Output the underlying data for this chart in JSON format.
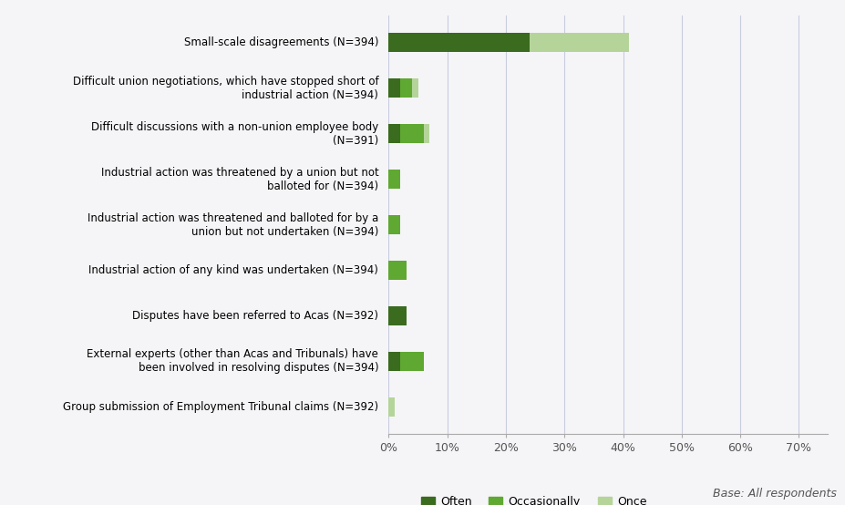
{
  "categories": [
    "Small-scale disagreements (N=394)",
    "Difficult union negotiations, which have stopped short of\nindustrial action (N=394)",
    "Difficult discussions with a non-union employee body\n(N=391)",
    "Industrial action was threatened by a union but not\nballoted for (N=394)",
    "Industrial action was threatened and balloted for by a\nunion but not undertaken (N=394)",
    "Industrial action of any kind was undertaken (N=394)",
    "Disputes have been referred to Acas (N=392)",
    "External experts (other than Acas and Tribunals) have\nbeen involved in resolving disputes (N=394)",
    "Group submission of Employment Tribunal claims (N=392)"
  ],
  "often": [
    24,
    2,
    2,
    0,
    0,
    0,
    3,
    2,
    0
  ],
  "occasionally": [
    0,
    2,
    4,
    2,
    2,
    3,
    0,
    4,
    0
  ],
  "once": [
    17,
    1,
    1,
    0,
    0,
    0,
    0,
    0,
    1
  ],
  "color_often": "#3a6b1e",
  "color_occasionally": "#5fa832",
  "color_once": "#b5d49a",
  "background_color": "#f5f5f8",
  "xlim": [
    0,
    75
  ],
  "xticks": [
    0,
    10,
    20,
    30,
    40,
    50,
    60,
    70
  ],
  "xticklabels": [
    "0%",
    "10%",
    "20%",
    "30%",
    "40%",
    "50%",
    "60%",
    "70%"
  ],
  "legend_labels": [
    "Often",
    "Occasionally",
    "Once"
  ],
  "base_note": "Base: All respondents"
}
